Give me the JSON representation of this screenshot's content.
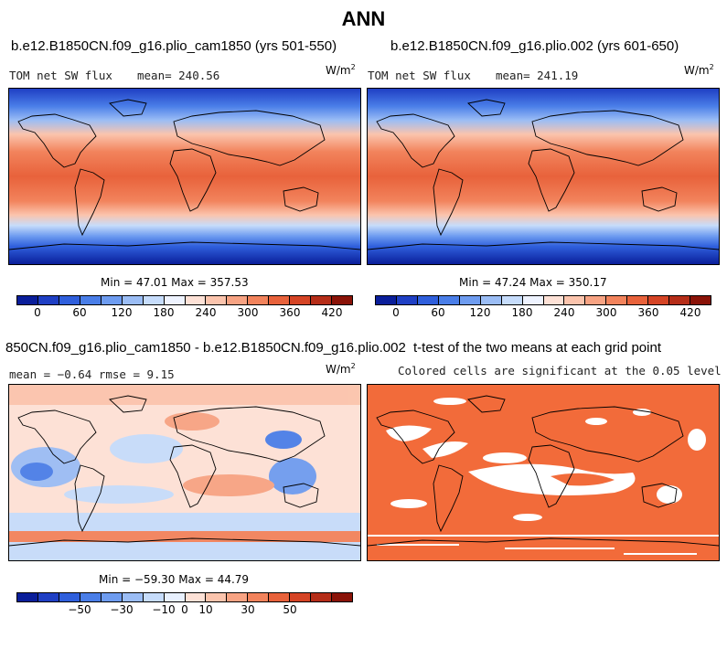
{
  "main_title": "ANN",
  "colors": {
    "field_scale": [
      "#0a1e9a",
      "#1f3fc4",
      "#2f5fdc",
      "#4a7ee8",
      "#6e9cf0",
      "#9bbdf5",
      "#c6dcfb",
      "#eef3ff",
      "#fde1d6",
      "#fbc4ad",
      "#f7a383",
      "#f2835c",
      "#e8623b",
      "#d54425",
      "#b52d18",
      "#8a1308"
    ],
    "diff_scale": [
      "#0a1e9a",
      "#1f3fc4",
      "#2f5fdc",
      "#4a7ee8",
      "#6e9cf0",
      "#9bbdf5",
      "#c6dcfb",
      "#e8f0fe",
      "#fde1d6",
      "#fbc4ad",
      "#f7a383",
      "#f2835c",
      "#e8623b",
      "#d54425",
      "#b52d18",
      "#8a1308"
    ],
    "significance": "#f26b3a"
  },
  "panels": {
    "p1": {
      "title": "b.e12.B1850CN.f09_g16.plio_cam1850 (yrs 501-550)",
      "variable": "TOM net SW flux",
      "mean_text": "mean= 240.56",
      "units": "W/m",
      "units_exp": "2",
      "minmax": "Min =  47.01 Max = 357.53",
      "ticks": [
        "0",
        "60",
        "120",
        "180",
        "240",
        "300",
        "360",
        "420"
      ]
    },
    "p2": {
      "title": "b.e12.B1850CN.f09_g16.plio.002 (yrs 601-650)",
      "variable": "TOM net SW flux",
      "mean_text": "mean= 241.19",
      "units": "W/m",
      "units_exp": "2",
      "minmax": "Min =  47.24 Max = 350.17",
      "ticks": [
        "0",
        "60",
        "120",
        "180",
        "240",
        "300",
        "360",
        "420"
      ]
    },
    "p3": {
      "title": "850CN.f09_g16.plio_cam1850 - b.e12.B1850CN.f09_g16.plio.002",
      "stats_text": "mean =  −0.64    rmse =    9.15",
      "units": "W/m",
      "units_exp": "2",
      "minmax": "Min = −59.30 Max =  44.79",
      "ticks": [
        "−50",
        "−30",
        "−10",
        "0",
        "10",
        "30",
        "50"
      ]
    },
    "p4": {
      "title": "t-test of the two means at each grid point",
      "subtitle": "Colored cells are significant at the 0.05 level"
    }
  },
  "chart_data": [
    {
      "type": "heatmap",
      "title": "b.e12.B1850CN.f09_g16.plio_cam1850 (yrs 501-550)",
      "variable": "TOM net SW flux",
      "units": "W/m2",
      "mean": 240.56,
      "min": 47.01,
      "max": 357.53,
      "colorbar_ticks": [
        0,
        60,
        120,
        180,
        240,
        300,
        360,
        420
      ],
      "colorbar_range": [
        0,
        450
      ]
    },
    {
      "type": "heatmap",
      "title": "b.e12.B1850CN.f09_g16.plio.002 (yrs 601-650)",
      "variable": "TOM net SW flux",
      "units": "W/m2",
      "mean": 241.19,
      "min": 47.24,
      "max": 350.17,
      "colorbar_ticks": [
        0,
        60,
        120,
        180,
        240,
        300,
        360,
        420
      ],
      "colorbar_range": [
        0,
        450
      ]
    },
    {
      "type": "heatmap",
      "title": "850CN.f09_g16.plio_cam1850 - b.e12.B1850CN.f09_g16.plio.002",
      "units": "W/m2",
      "mean": -0.64,
      "rmse": 9.15,
      "min": -59.3,
      "max": 44.79,
      "colorbar_ticks": [
        -50,
        -30,
        -10,
        0,
        10,
        30,
        50
      ]
    },
    {
      "type": "heatmap",
      "title": "t-test of the two means at each grid point",
      "subtitle": "Colored cells are significant at the 0.05 level"
    }
  ]
}
